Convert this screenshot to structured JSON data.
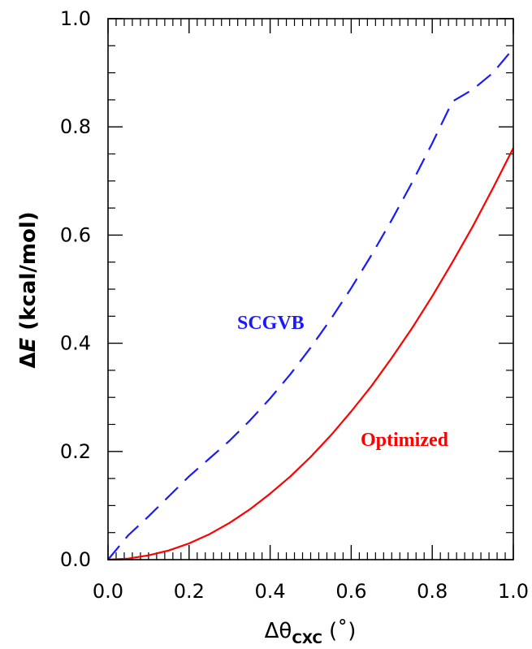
{
  "chart_data": {
    "type": "line",
    "xlabel": {
      "prefix": "Δθ",
      "subscript": "CXC",
      "suffix": " (˚)"
    },
    "ylabel": {
      "prefix": "Δ",
      "italic": "E",
      "suffix": " (kcal/mol)"
    },
    "xlim": [
      0.0,
      1.0
    ],
    "ylim": [
      0.0,
      1.0
    ],
    "x_ticks": [
      "0.0",
      "0.2",
      "0.4",
      "0.6",
      "0.8",
      "1.0"
    ],
    "y_ticks": [
      "0.0",
      "0.2",
      "0.4",
      "0.6",
      "0.8",
      "1.0"
    ],
    "grid": false,
    "series": [
      {
        "name": "SCGVB",
        "color": "#1a1aff",
        "style": "dashed",
        "x": [
          0.0,
          0.05,
          0.1,
          0.15,
          0.2,
          0.25,
          0.3,
          0.35,
          0.4,
          0.45,
          0.5,
          0.55,
          0.6,
          0.65,
          0.7,
          0.75,
          0.8,
          0.85,
          0.9,
          0.95,
          1.0
        ],
        "y": [
          0.0,
          0.045,
          0.08,
          0.117,
          0.154,
          0.187,
          0.22,
          0.257,
          0.298,
          0.343,
          0.392,
          0.445,
          0.502,
          0.563,
          0.628,
          0.697,
          0.77,
          0.847,
          0.869,
          0.9,
          0.945
        ]
      },
      {
        "name": "Optimized",
        "color": "#ff0000",
        "style": "solid",
        "x": [
          0.0,
          0.05,
          0.1,
          0.15,
          0.2,
          0.25,
          0.3,
          0.35,
          0.4,
          0.45,
          0.5,
          0.55,
          0.6,
          0.65,
          0.7,
          0.75,
          0.8,
          0.85,
          0.9,
          0.95,
          1.0
        ],
        "y": [
          0.0,
          0.002,
          0.008,
          0.017,
          0.03,
          0.047,
          0.068,
          0.093,
          0.122,
          0.154,
          0.19,
          0.23,
          0.274,
          0.321,
          0.373,
          0.428,
          0.487,
          0.55,
          0.616,
          0.687,
          0.761
        ]
      }
    ]
  }
}
